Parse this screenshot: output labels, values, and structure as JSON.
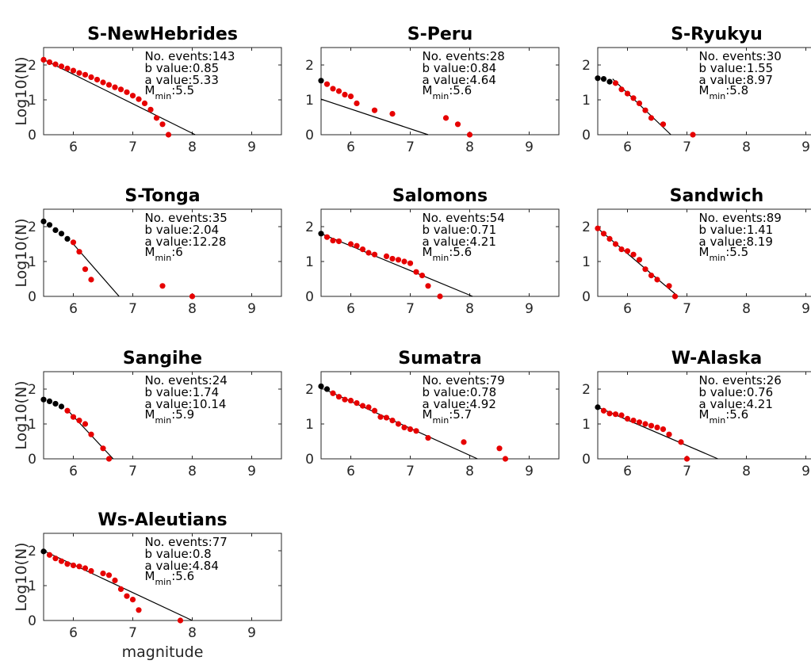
{
  "figure": {
    "ylabel": "Log10(N)",
    "xlabel": "magnitude"
  },
  "stat_labels": {
    "events": "No. events:",
    "b": "b value:",
    "a": "a value:",
    "mmin_main": "M",
    "mmin_sub": "min",
    "mmin_sep": ":"
  },
  "colors": {
    "below_mmin": "#000000",
    "above_mmin": "#e60000",
    "fit_line": "#000000"
  },
  "chart_data": [
    {
      "type": "scatter",
      "title": "S-NewHebrides",
      "events": "143",
      "b_value": "0.85",
      "a_value": "5.33",
      "mmin": "5.5",
      "xlim": [
        5.5,
        9.5
      ],
      "ylim": [
        0,
        2.5
      ],
      "xticks": [
        6,
        7,
        8,
        9
      ],
      "yticks": [
        0,
        1,
        2
      ],
      "fit_line": [
        [
          5.5,
          2.155
        ],
        [
          8.05,
          0
        ]
      ],
      "series": [
        {
          "label": "below Mmin",
          "points": []
        },
        {
          "label": "above Mmin",
          "points": [
            [
              5.5,
              2.15
            ],
            [
              5.6,
              2.08
            ],
            [
              5.7,
              2.02
            ],
            [
              5.8,
              1.96
            ],
            [
              5.9,
              1.9
            ],
            [
              6.0,
              1.84
            ],
            [
              6.1,
              1.77
            ],
            [
              6.2,
              1.72
            ],
            [
              6.3,
              1.65
            ],
            [
              6.4,
              1.58
            ],
            [
              6.5,
              1.5
            ],
            [
              6.6,
              1.43
            ],
            [
              6.7,
              1.36
            ],
            [
              6.8,
              1.3
            ],
            [
              6.9,
              1.22
            ],
            [
              7.0,
              1.12
            ],
            [
              7.1,
              1.02
            ],
            [
              7.2,
              0.9
            ],
            [
              7.3,
              0.72
            ],
            [
              7.4,
              0.48
            ],
            [
              7.5,
              0.3
            ],
            [
              7.6,
              0
            ]
          ]
        }
      ]
    },
    {
      "type": "scatter",
      "title": "S-Peru",
      "events": "28",
      "b_value": "0.84",
      "a_value": "4.64",
      "mmin": "5.6",
      "xlim": [
        5.5,
        9.5
      ],
      "ylim": [
        0,
        2.5
      ],
      "xticks": [
        6,
        7,
        8,
        9
      ],
      "yticks": [
        0,
        1,
        2
      ],
      "fit_line": [
        [
          5.5,
          1.02
        ],
        [
          7.3,
          0
        ]
      ],
      "series": [
        {
          "label": "below Mmin",
          "points": [
            [
              5.5,
              1.55
            ]
          ]
        },
        {
          "label": "above Mmin",
          "points": [
            [
              5.6,
              1.45
            ],
            [
              5.7,
              1.32
            ],
            [
              5.8,
              1.25
            ],
            [
              5.9,
              1.15
            ],
            [
              6.0,
              1.1
            ],
            [
              6.1,
              0.9
            ],
            [
              6.4,
              0.7
            ],
            [
              6.7,
              0.6
            ],
            [
              7.6,
              0.48
            ],
            [
              7.8,
              0.3
            ],
            [
              8.0,
              0
            ]
          ]
        }
      ]
    },
    {
      "type": "scatter",
      "title": "S-Ryukyu",
      "events": "30",
      "b_value": "1.55",
      "a_value": "8.97",
      "mmin": "5.8",
      "xlim": [
        5.5,
        9.5
      ],
      "ylim": [
        0,
        2.5
      ],
      "xticks": [
        6,
        7,
        8,
        9
      ],
      "yticks": [
        0,
        1,
        2
      ],
      "fit_line": [
        [
          5.75,
          1.6
        ],
        [
          6.73,
          0
        ]
      ],
      "series": [
        {
          "label": "below Mmin",
          "points": [
            [
              5.5,
              1.62
            ],
            [
              5.6,
              1.6
            ],
            [
              5.7,
              1.52
            ]
          ]
        },
        {
          "label": "above Mmin",
          "points": [
            [
              5.8,
              1.48
            ],
            [
              5.9,
              1.3
            ],
            [
              6.0,
              1.18
            ],
            [
              6.1,
              1.05
            ],
            [
              6.2,
              0.9
            ],
            [
              6.3,
              0.7
            ],
            [
              6.4,
              0.48
            ],
            [
              6.6,
              0.3
            ],
            [
              7.1,
              0
            ]
          ]
        }
      ]
    },
    {
      "type": "scatter",
      "title": "S-Tonga",
      "events": "35",
      "b_value": "2.04",
      "a_value": "12.28",
      "mmin": "6",
      "xlim": [
        5.5,
        9.5
      ],
      "ylim": [
        0,
        2.5
      ],
      "xticks": [
        6,
        7,
        8,
        9
      ],
      "yticks": [
        0,
        1,
        2
      ],
      "fit_line": [
        [
          6.0,
          1.5
        ],
        [
          6.77,
          0
        ]
      ],
      "series": [
        {
          "label": "below Mmin",
          "points": [
            [
              5.5,
              2.15
            ],
            [
              5.6,
              2.05
            ],
            [
              5.7,
              1.9
            ],
            [
              5.8,
              1.8
            ],
            [
              5.9,
              1.65
            ]
          ]
        },
        {
          "label": "above Mmin",
          "points": [
            [
              6.0,
              1.55
            ],
            [
              6.1,
              1.28
            ],
            [
              6.2,
              0.78
            ],
            [
              6.3,
              0.48
            ],
            [
              7.5,
              0.3
            ],
            [
              8.0,
              0
            ]
          ]
        }
      ]
    },
    {
      "type": "scatter",
      "title": "Salomons",
      "events": "54",
      "b_value": "0.71",
      "a_value": "4.21",
      "mmin": "5.6",
      "xlim": [
        5.5,
        9.5
      ],
      "ylim": [
        0,
        2.5
      ],
      "xticks": [
        6,
        7,
        8,
        9
      ],
      "yticks": [
        0,
        1,
        2
      ],
      "fit_line": [
        [
          5.5,
          1.8
        ],
        [
          8.05,
          0
        ]
      ],
      "series": [
        {
          "label": "below Mmin",
          "points": [
            [
              5.5,
              1.8
            ]
          ]
        },
        {
          "label": "above Mmin",
          "points": [
            [
              5.6,
              1.7
            ],
            [
              5.7,
              1.6
            ],
            [
              5.8,
              1.58
            ],
            [
              6.0,
              1.5
            ],
            [
              6.1,
              1.45
            ],
            [
              6.2,
              1.35
            ],
            [
              6.3,
              1.25
            ],
            [
              6.4,
              1.2
            ],
            [
              6.6,
              1.15
            ],
            [
              6.7,
              1.08
            ],
            [
              6.8,
              1.05
            ],
            [
              6.9,
              1.0
            ],
            [
              7.0,
              0.95
            ],
            [
              7.1,
              0.7
            ],
            [
              7.2,
              0.6
            ],
            [
              7.3,
              0.3
            ],
            [
              7.5,
              0
            ]
          ]
        }
      ]
    },
    {
      "type": "scatter",
      "title": "Sandwich",
      "events": "89",
      "b_value": "1.41",
      "a_value": "8.19",
      "mmin": "5.5",
      "xlim": [
        5.5,
        9.5
      ],
      "ylim": [
        0,
        2.5
      ],
      "xticks": [
        6,
        7,
        8,
        9
      ],
      "yticks": [
        0,
        1,
        2
      ],
      "fit_line": [
        [
          5.5,
          1.95
        ],
        [
          6.85,
          0
        ]
      ],
      "series": [
        {
          "label": "below Mmin",
          "points": []
        },
        {
          "label": "above Mmin",
          "points": [
            [
              5.5,
              1.95
            ],
            [
              5.6,
              1.8
            ],
            [
              5.7,
              1.65
            ],
            [
              5.8,
              1.5
            ],
            [
              5.9,
              1.35
            ],
            [
              6.0,
              1.3
            ],
            [
              6.1,
              1.2
            ],
            [
              6.2,
              1.05
            ],
            [
              6.3,
              0.78
            ],
            [
              6.4,
              0.6
            ],
            [
              6.5,
              0.48
            ],
            [
              6.7,
              0.3
            ],
            [
              6.8,
              0
            ]
          ]
        }
      ]
    },
    {
      "type": "scatter",
      "title": "Sangihe",
      "events": "24",
      "b_value": "1.74",
      "a_value": "10.14",
      "mmin": "5.9",
      "xlim": [
        5.5,
        9.5
      ],
      "ylim": [
        0,
        2.5
      ],
      "xticks": [
        6,
        7,
        8,
        9
      ],
      "yticks": [
        0,
        1,
        2
      ],
      "fit_line": [
        [
          5.9,
          1.4
        ],
        [
          6.67,
          0
        ]
      ],
      "series": [
        {
          "label": "below Mmin",
          "points": [
            [
              5.5,
              1.7
            ],
            [
              5.6,
              1.65
            ],
            [
              5.7,
              1.58
            ],
            [
              5.8,
              1.5
            ]
          ]
        },
        {
          "label": "above Mmin",
          "points": [
            [
              5.9,
              1.38
            ],
            [
              6.0,
              1.2
            ],
            [
              6.1,
              1.1
            ],
            [
              6.2,
              1.0
            ],
            [
              6.3,
              0.7
            ],
            [
              6.5,
              0.3
            ],
            [
              6.6,
              0
            ]
          ]
        }
      ]
    },
    {
      "type": "scatter",
      "title": "Sumatra",
      "events": "79",
      "b_value": "0.78",
      "a_value": "4.92",
      "mmin": "5.7",
      "xlim": [
        5.5,
        9.5
      ],
      "ylim": [
        0,
        2.5
      ],
      "xticks": [
        6,
        7,
        8,
        9
      ],
      "yticks": [
        0,
        1,
        2
      ],
      "fit_line": [
        [
          5.6,
          1.96
        ],
        [
          8.13,
          0
        ]
      ],
      "series": [
        {
          "label": "below Mmin",
          "points": [
            [
              5.5,
              2.08
            ],
            [
              5.6,
              2.0
            ]
          ]
        },
        {
          "label": "above Mmin",
          "points": [
            [
              5.7,
              1.88
            ],
            [
              5.8,
              1.78
            ],
            [
              5.9,
              1.7
            ],
            [
              6.0,
              1.67
            ],
            [
              6.1,
              1.6
            ],
            [
              6.2,
              1.52
            ],
            [
              6.3,
              1.48
            ],
            [
              6.4,
              1.38
            ],
            [
              6.5,
              1.2
            ],
            [
              6.6,
              1.18
            ],
            [
              6.7,
              1.1
            ],
            [
              6.8,
              1.0
            ],
            [
              6.9,
              0.9
            ],
            [
              7.0,
              0.85
            ],
            [
              7.1,
              0.8
            ],
            [
              7.3,
              0.6
            ],
            [
              7.9,
              0.48
            ],
            [
              8.5,
              0.3
            ],
            [
              8.6,
              0
            ]
          ]
        }
      ]
    },
    {
      "type": "scatter",
      "title": "W-Alaska",
      "events": "26",
      "b_value": "0.76",
      "a_value": "4.21",
      "mmin": "5.6",
      "xlim": [
        5.5,
        9.5
      ],
      "ylim": [
        0,
        2.5
      ],
      "xticks": [
        6,
        7,
        8,
        9
      ],
      "yticks": [
        0,
        1,
        2
      ],
      "fit_line": [
        [
          5.5,
          1.48
        ],
        [
          7.52,
          0
        ]
      ],
      "series": [
        {
          "label": "below Mmin",
          "points": [
            [
              5.5,
              1.48
            ]
          ]
        },
        {
          "label": "above Mmin",
          "points": [
            [
              5.6,
              1.38
            ],
            [
              5.7,
              1.3
            ],
            [
              5.8,
              1.28
            ],
            [
              5.9,
              1.25
            ],
            [
              6.0,
              1.15
            ],
            [
              6.1,
              1.1
            ],
            [
              6.2,
              1.05
            ],
            [
              6.3,
              1.0
            ],
            [
              6.4,
              0.95
            ],
            [
              6.5,
              0.9
            ],
            [
              6.6,
              0.85
            ],
            [
              6.7,
              0.7
            ],
            [
              6.9,
              0.48
            ],
            [
              7.0,
              0
            ]
          ]
        }
      ]
    },
    {
      "type": "scatter",
      "title": "Ws-Aleutians",
      "events": "77",
      "b_value": "0.8",
      "a_value": "4.84",
      "mmin": "5.6",
      "xlim": [
        5.5,
        9.5
      ],
      "ylim": [
        0,
        2.5
      ],
      "xticks": [
        6,
        7,
        8,
        9
      ],
      "yticks": [
        0,
        1,
        2
      ],
      "fit_line": [
        [
          5.5,
          2.0
        ],
        [
          8.0,
          0
        ]
      ],
      "series": [
        {
          "label": "below Mmin",
          "points": [
            [
              5.5,
              1.98
            ]
          ]
        },
        {
          "label": "above Mmin",
          "points": [
            [
              5.6,
              1.88
            ],
            [
              5.7,
              1.78
            ],
            [
              5.8,
              1.7
            ],
            [
              5.9,
              1.62
            ],
            [
              6.0,
              1.58
            ],
            [
              6.1,
              1.55
            ],
            [
              6.2,
              1.5
            ],
            [
              6.3,
              1.42
            ],
            [
              6.5,
              1.35
            ],
            [
              6.6,
              1.3
            ],
            [
              6.7,
              1.15
            ],
            [
              6.8,
              0.9
            ],
            [
              6.9,
              0.7
            ],
            [
              7.0,
              0.6
            ],
            [
              7.1,
              0.3
            ],
            [
              7.8,
              0
            ]
          ]
        }
      ]
    }
  ]
}
